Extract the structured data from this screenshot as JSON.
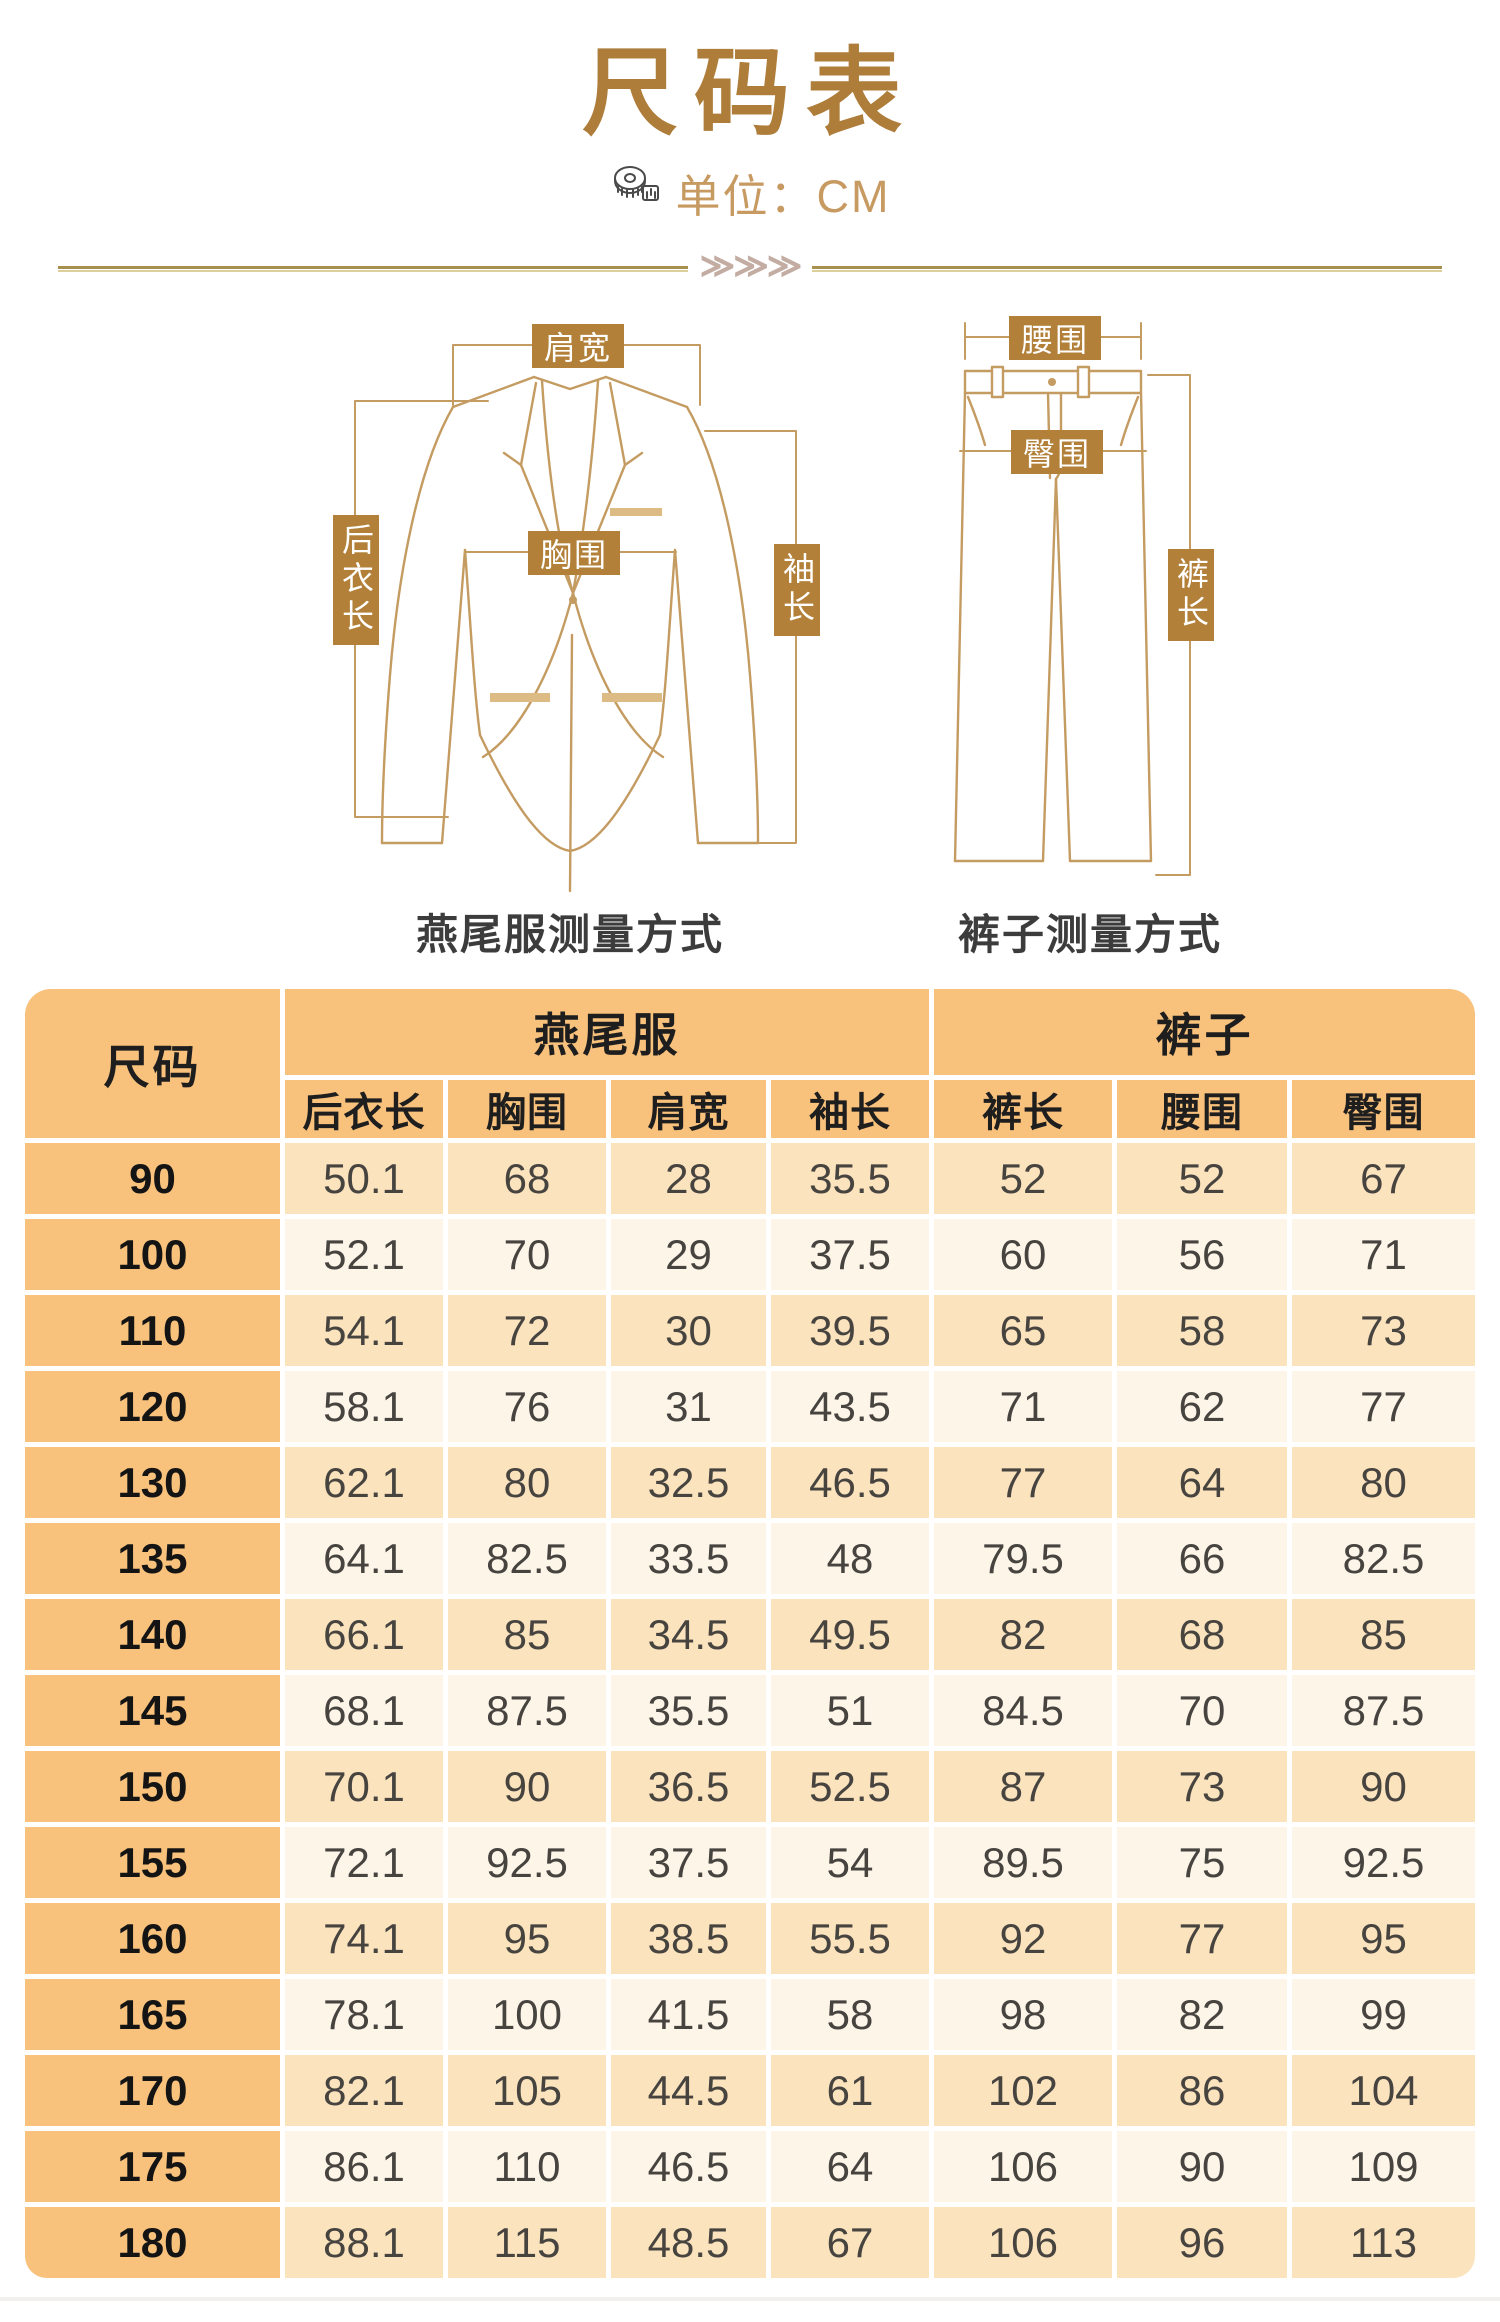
{
  "header": {
    "title": "尺码表",
    "unit": "单位：CM"
  },
  "divider": {
    "chevrons": "≫≫≫"
  },
  "diagrams": {
    "jacket": {
      "caption": "燕尾服测量方式",
      "labels": {
        "shoulder_width": "肩宽",
        "back_length": "后衣长",
        "chest": "胸围",
        "sleeve_length": "袖长"
      }
    },
    "pants": {
      "caption": "裤子测量方式",
      "labels": {
        "waist": "腰围",
        "hip": "臀围",
        "pants_length": "裤长"
      }
    }
  },
  "table": {
    "corner": "尺码",
    "groups": [
      {
        "label": "燕尾服",
        "columns": [
          "后衣长",
          "胸围",
          "肩宽",
          "袖长"
        ]
      },
      {
        "label": "裤子",
        "columns": [
          "裤长",
          "腰围",
          "臀围"
        ]
      }
    ],
    "rows": [
      {
        "size": "90",
        "values": [
          "50.1",
          "68",
          "28",
          "35.5",
          "52",
          "52",
          "67"
        ]
      },
      {
        "size": "100",
        "values": [
          "52.1",
          "70",
          "29",
          "37.5",
          "60",
          "56",
          "71"
        ]
      },
      {
        "size": "110",
        "values": [
          "54.1",
          "72",
          "30",
          "39.5",
          "65",
          "58",
          "73"
        ]
      },
      {
        "size": "120",
        "values": [
          "58.1",
          "76",
          "31",
          "43.5",
          "71",
          "62",
          "77"
        ]
      },
      {
        "size": "130",
        "values": [
          "62.1",
          "80",
          "32.5",
          "46.5",
          "77",
          "64",
          "80"
        ]
      },
      {
        "size": "135",
        "values": [
          "64.1",
          "82.5",
          "33.5",
          "48",
          "79.5",
          "66",
          "82.5"
        ]
      },
      {
        "size": "140",
        "values": [
          "66.1",
          "85",
          "34.5",
          "49.5",
          "82",
          "68",
          "85"
        ]
      },
      {
        "size": "145",
        "values": [
          "68.1",
          "87.5",
          "35.5",
          "51",
          "84.5",
          "70",
          "87.5"
        ]
      },
      {
        "size": "150",
        "values": [
          "70.1",
          "90",
          "36.5",
          "52.5",
          "87",
          "73",
          "90"
        ]
      },
      {
        "size": "155",
        "values": [
          "72.1",
          "92.5",
          "37.5",
          "54",
          "89.5",
          "75",
          "92.5"
        ]
      },
      {
        "size": "160",
        "values": [
          "74.1",
          "95",
          "38.5",
          "55.5",
          "92",
          "77",
          "95"
        ]
      },
      {
        "size": "165",
        "values": [
          "78.1",
          "100",
          "41.5",
          "58",
          "98",
          "82",
          "99"
        ]
      },
      {
        "size": "170",
        "values": [
          "82.1",
          "105",
          "44.5",
          "61",
          "102",
          "86",
          "104"
        ]
      },
      {
        "size": "175",
        "values": [
          "86.1",
          "110",
          "46.5",
          "64",
          "106",
          "90",
          "109"
        ]
      },
      {
        "size": "180",
        "values": [
          "88.1",
          "115",
          "48.5",
          "67",
          "106",
          "96",
          "113"
        ]
      }
    ]
  },
  "colors": {
    "title_gold": "#AE7D3A",
    "unit_tan": "#C79A62",
    "label_box": "#B28038",
    "line_art": "#C49B61",
    "header_bg": "#F8C17C",
    "row_dark": "#FBE3BE",
    "row_light": "#FEF5E9"
  }
}
